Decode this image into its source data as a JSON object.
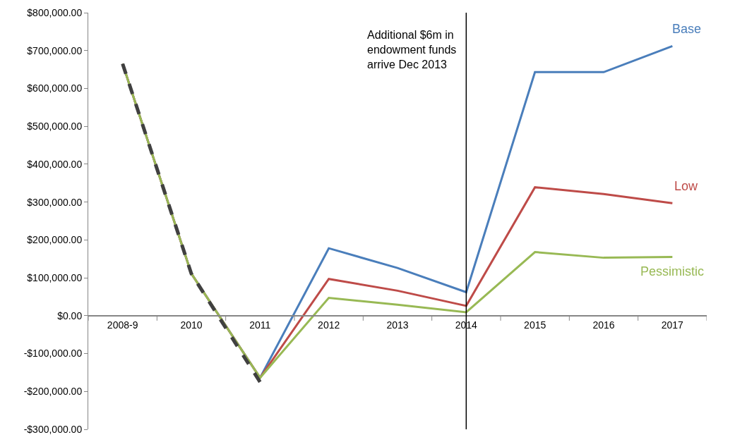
{
  "chart_data": {
    "type": "line",
    "categories": [
      "2008-9",
      "2010",
      "2011",
      "2012",
      "2013",
      "2014",
      "2015",
      "2016",
      "2017"
    ],
    "series": [
      {
        "name": "Base",
        "color": "#4a7ebb",
        "values": [
          665000,
          111000,
          -164000,
          178000,
          126000,
          62000,
          643000,
          643000,
          712000
        ]
      },
      {
        "name": "Low",
        "color": "#be4b48",
        "values": [
          665000,
          111000,
          -164000,
          97000,
          66000,
          26000,
          339000,
          321000,
          297000
        ]
      },
      {
        "name": "Pessimistic",
        "color": "#98b954",
        "values": [
          665000,
          111000,
          -164000,
          47000,
          29000,
          9000,
          168000,
          153000,
          155000
        ]
      },
      {
        "color": "#404040",
        "line_style": "dashed",
        "values": [
          665000,
          111000,
          -175000,
          null,
          null,
          null,
          null,
          null,
          null
        ]
      }
    ],
    "ylim": [
      -300000,
      800000
    ],
    "yticks": [
      {
        "value": -300000,
        "label": "-$300,000.00"
      },
      {
        "value": -200000,
        "label": "-$200,000.00"
      },
      {
        "value": -100000,
        "label": "-$100,000.00"
      },
      {
        "value": 0,
        "label": "$0.00"
      },
      {
        "value": 100000,
        "label": "$100,000.00"
      },
      {
        "value": 200000,
        "label": "$200,000.00"
      },
      {
        "value": 300000,
        "label": "$300,000.00"
      },
      {
        "value": 400000,
        "label": "$400,000.00"
      },
      {
        "value": 500000,
        "label": "$500,000.00"
      },
      {
        "value": 600000,
        "label": "$600,000.00"
      },
      {
        "value": 700000,
        "label": "$700,000.00"
      },
      {
        "value": 800000,
        "label": "$800,000.00"
      }
    ],
    "ref_lines": [
      {
        "axis": "x",
        "value": "2014",
        "color": "#000000"
      }
    ],
    "annotations": [
      "Additional $6m in endowment funds arrive Dec 2013"
    ],
    "legend": false,
    "marker": "none",
    "line_style": "solid"
  }
}
